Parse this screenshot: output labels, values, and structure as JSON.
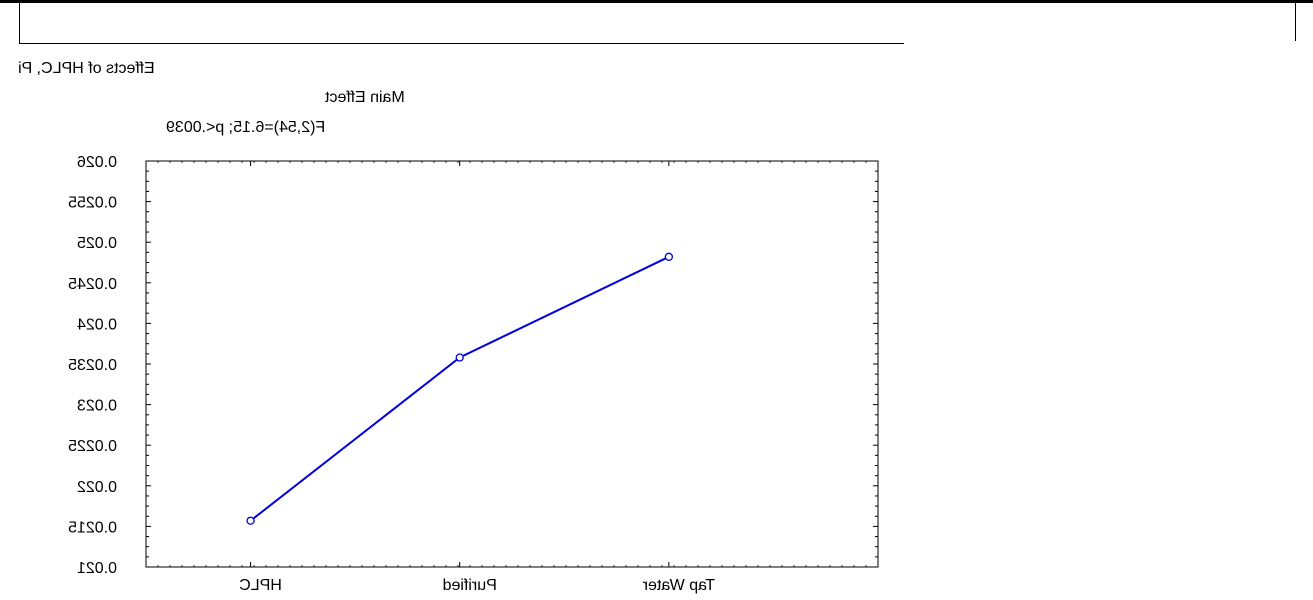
{
  "page_title": "Effects of HPLC, Pi",
  "chart_data": {
    "type": "line",
    "mirrored": true,
    "title": "Main Effect",
    "subtitle": "F(2,54)=6.15; p<.0039",
    "ylabel": "",
    "xlabel": "",
    "categories": [
      "HPLC",
      "Purified",
      "Tap Water"
    ],
    "series": [
      {
        "color": "#0000dd",
        "values": [
          0.02157,
          0.02358,
          0.02482
        ]
      }
    ],
    "ylim": [
      0.021,
      0.026
    ],
    "yticks": [
      "0.021",
      "0.0215",
      "0.022",
      "0.0225",
      "0.023",
      "0.0235",
      "0.024",
      "0.0245",
      "0.025",
      "0.0255",
      "0.026"
    ],
    "ytick_labels": [
      "0.021",
      "0.0215",
      "0.022",
      "0.0225",
      "0.023",
      "0.0235",
      "0.024",
      "0.0245",
      "0.025",
      "0.0255",
      "0.026"
    ],
    "grid": false,
    "legend": "none"
  }
}
